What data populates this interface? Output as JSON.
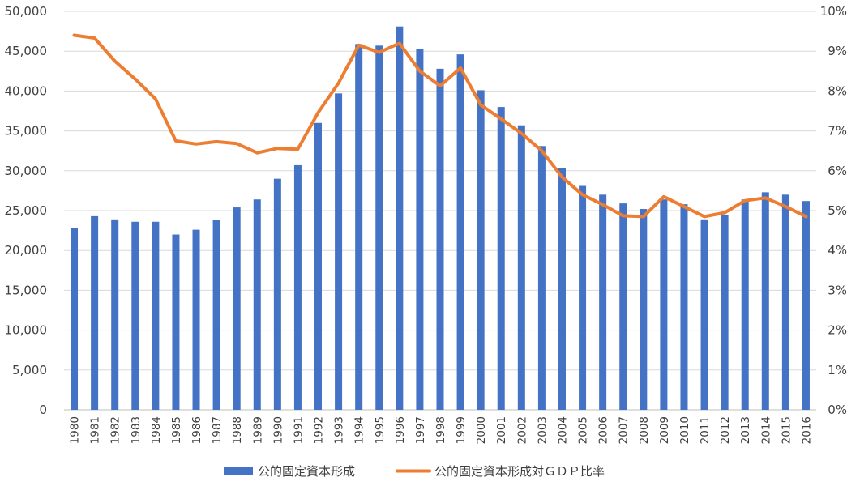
{
  "chart_data": {
    "type": "bar",
    "categories": [
      "1980",
      "1981",
      "1982",
      "1983",
      "1984",
      "1985",
      "1986",
      "1987",
      "1988",
      "1989",
      "1990",
      "1991",
      "1992",
      "1993",
      "1994",
      "1995",
      "1996",
      "1997",
      "1998",
      "1999",
      "2000",
      "2001",
      "2002",
      "2003",
      "2004",
      "2005",
      "2006",
      "2007",
      "2008",
      "2009",
      "2010",
      "2011",
      "2012",
      "2013",
      "2014",
      "2015",
      "2016"
    ],
    "series": [
      {
        "name": "公的固定資本形成",
        "type": "bar",
        "axis": "left",
        "color": "#4472C4",
        "values": [
          22800,
          24300,
          23900,
          23600,
          23600,
          22000,
          22600,
          23800,
          25400,
          26400,
          29000,
          30700,
          36000,
          39700,
          45900,
          45700,
          48100,
          45300,
          42800,
          44600,
          40100,
          38000,
          35700,
          33100,
          30300,
          28100,
          27000,
          25900,
          25200,
          26400,
          25800,
          23900,
          24500,
          26400,
          27300,
          27000,
          26200
        ]
      },
      {
        "name": "公的固定資本形成対ＧＤＰ比率",
        "type": "line",
        "axis": "right",
        "color": "#ED7D31",
        "values": [
          9.4,
          9.33,
          8.75,
          8.3,
          7.8,
          6.75,
          6.67,
          6.73,
          6.68,
          6.45,
          6.56,
          6.54,
          7.46,
          8.2,
          9.15,
          8.97,
          9.2,
          8.5,
          8.13,
          8.58,
          7.65,
          7.3,
          6.94,
          6.5,
          5.84,
          5.4,
          5.15,
          4.87,
          4.85,
          5.35,
          5.1,
          4.85,
          4.95,
          5.25,
          5.32,
          5.1,
          4.85
        ]
      }
    ],
    "y_left": {
      "ticks": [
        "0",
        "5,000",
        "10,000",
        "15,000",
        "20,000",
        "25,000",
        "30,000",
        "35,000",
        "40,000",
        "45,000",
        "50,000"
      ],
      "ylim": [
        0,
        50000
      ]
    },
    "y_right": {
      "ticks": [
        "0%",
        "1%",
        "2%",
        "3%",
        "4%",
        "5%",
        "6%",
        "7%",
        "8%",
        "9%",
        "10%"
      ],
      "ylim": [
        0,
        10
      ]
    },
    "grid": true,
    "legend_position": "bottom"
  }
}
